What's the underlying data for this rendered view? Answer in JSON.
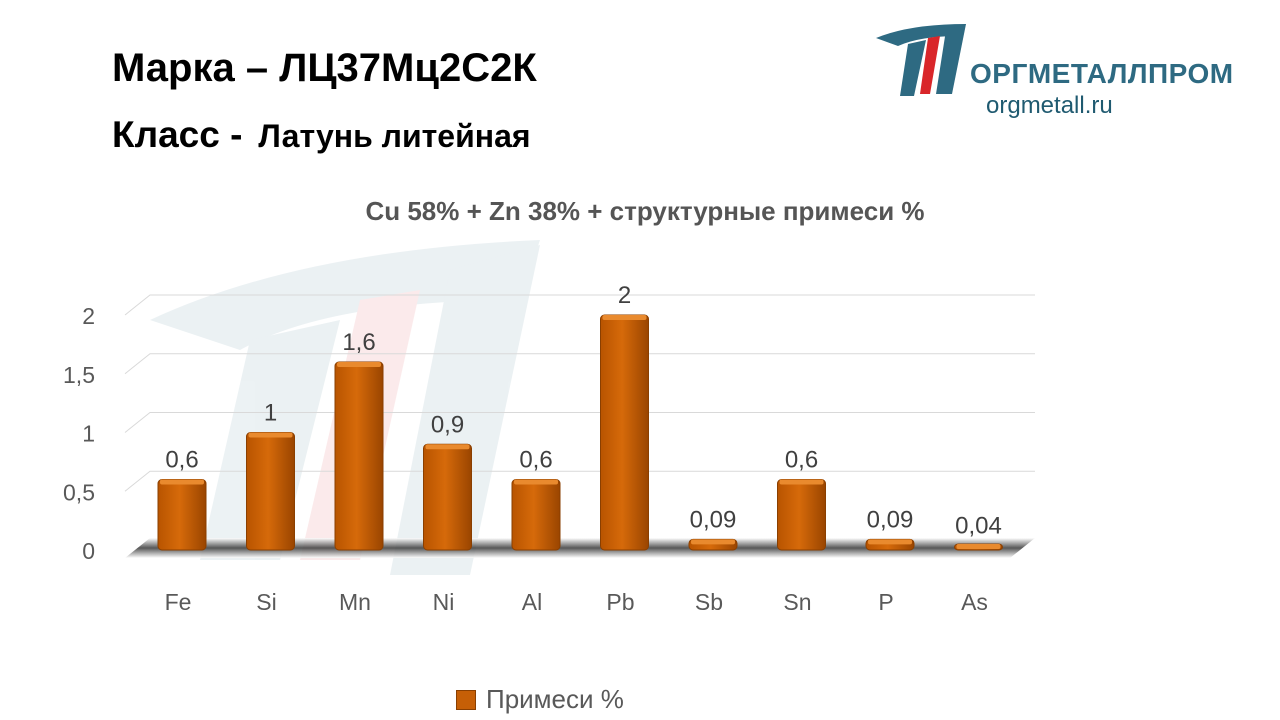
{
  "header": {
    "grade_label": "Марка",
    "grade_dash": "–",
    "grade_value": "ЛЦ37Мц2С2К",
    "class_label": "Класс -",
    "class_value": "Латунь литейная"
  },
  "brand": {
    "name": "ОРГМЕТАЛЛПРОМ",
    "url": "orgmetall.ru",
    "colors": {
      "primary": "#2e6a82",
      "accent": "#d9262a"
    }
  },
  "chart_data": {
    "type": "bar",
    "title": "Cu 58% + Zn 38% + структурные примеси %",
    "categories": [
      "Fe",
      "Si",
      "Mn",
      "Ni",
      "Al",
      "Pb",
      "Sb",
      "Sn",
      "P",
      "As"
    ],
    "series": [
      {
        "name": "Примеси %",
        "values": [
          0.6,
          1,
          1.6,
          0.9,
          0.6,
          2,
          0.09,
          0.6,
          0.09,
          0.04
        ],
        "labels": [
          "0,6",
          "1",
          "1,6",
          "0,9",
          "0,6",
          "2",
          "0,09",
          "0,6",
          "0,09",
          "0,04"
        ],
        "color": "#c65f06"
      }
    ],
    "yticks": [
      0,
      0.5,
      1,
      1.5,
      2
    ],
    "ytick_labels": [
      "0",
      "0,5",
      "1",
      "1,5",
      "2"
    ],
    "ylim": [
      0,
      2
    ],
    "grid": true,
    "legend": "bottom",
    "style": "3d-bar"
  }
}
